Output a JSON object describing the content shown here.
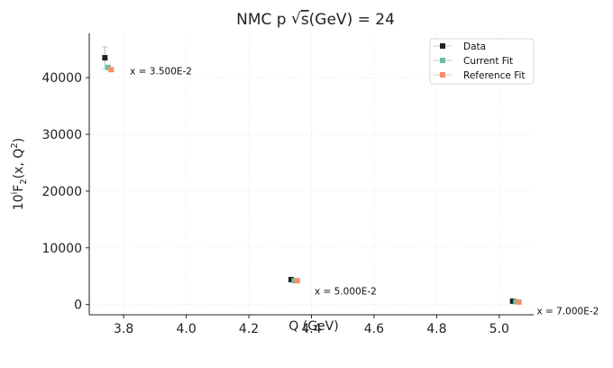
{
  "chart_data": {
    "type": "scatter",
    "title_main": "NMC p ",
    "title_sqrt": "s",
    "title_tail": "(GeV) = 24",
    "xlabel": "Q (GeV)",
    "ylabel_prefix": "10",
    "ylabel_exp": "i",
    "ylabel_mid": "F",
    "ylabel_sub": "2",
    "ylabel_args": "(x, Q",
    "ylabel_args_exp": "2",
    "ylabel_close": ")",
    "xlim": [
      3.69,
      5.11
    ],
    "ylim": [
      -1800,
      47800
    ],
    "xticks": [
      3.8,
      4.0,
      4.2,
      4.4,
      4.6,
      4.8,
      5.0
    ],
    "xtick_labels": [
      "3.8",
      "4.0",
      "4.2",
      "4.4",
      "4.6",
      "4.8",
      "5.0"
    ],
    "yticks": [
      0,
      10000,
      20000,
      30000,
      40000
    ],
    "ytick_labels": [
      "0",
      "10000",
      "20000",
      "30000",
      "40000"
    ],
    "grid": true,
    "legend_position": "top-right",
    "series": [
      {
        "name": "Data",
        "color": "#222222",
        "x": [
          3.74,
          4.335,
          5.043
        ],
        "y": [
          43500,
          4400,
          600
        ],
        "yerr": [
          1900,
          250,
          80
        ]
      },
      {
        "name": "Current Fit",
        "color": "#66c2a5",
        "x": [
          3.75,
          4.345,
          5.053
        ],
        "y": [
          41800,
          4200,
          500
        ],
        "yerr": [
          0,
          0,
          0
        ]
      },
      {
        "name": "Reference Fit",
        "color": "#fc8d62",
        "x": [
          3.76,
          4.355,
          5.063
        ],
        "y": [
          41400,
          4200,
          450
        ],
        "yerr": [
          0,
          0,
          0
        ]
      }
    ],
    "annotations": [
      {
        "text": "x = 3.500E-2",
        "x": 3.82,
        "y": 41200
      },
      {
        "text": "x = 5.000E-2",
        "x": 4.41,
        "y": 2400
      },
      {
        "text": "x = 7.000E-2",
        "x": 5.12,
        "y": -1100
      }
    ]
  }
}
